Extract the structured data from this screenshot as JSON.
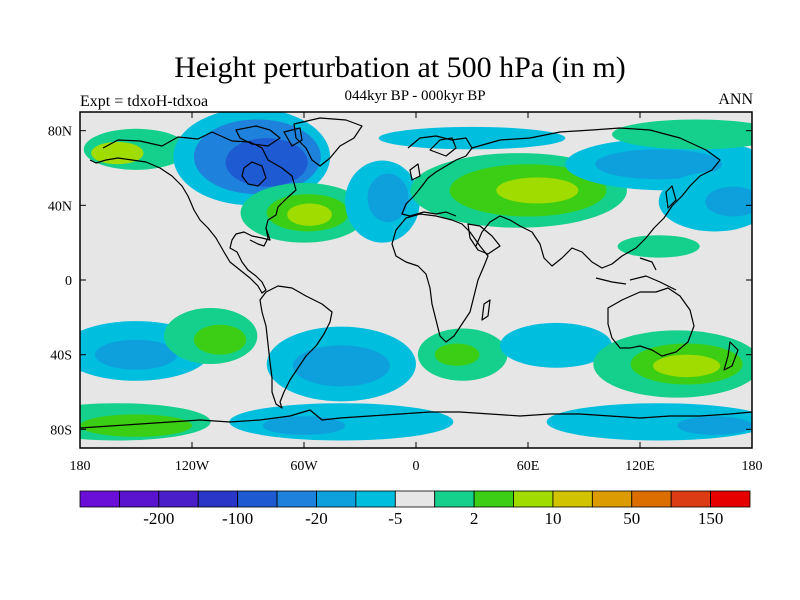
{
  "title": "Height perturbation at 500 hPa (in m)",
  "subtitle": "044kyr BP - 000kyr BP",
  "left_label": "Expt = tdxoH-tdxoa",
  "right_label": "ANN",
  "lat_ticks": [
    {
      "label": "80N",
      "lat": 80
    },
    {
      "label": "40N",
      "lat": 40
    },
    {
      "label": "0",
      "lat": 0
    },
    {
      "label": "40S",
      "lat": -40
    },
    {
      "label": "80S",
      "lat": -80
    }
  ],
  "lon_ticks": [
    {
      "label": "180",
      "lon": -180
    },
    {
      "label": "120W",
      "lon": -120
    },
    {
      "label": "60W",
      "lon": -60
    },
    {
      "label": "0",
      "lon": 0
    },
    {
      "label": "60E",
      "lon": 60
    },
    {
      "label": "120E",
      "lon": 120
    },
    {
      "label": "180",
      "lon": 180
    }
  ],
  "colorbar": {
    "colors": [
      "#6a0fd8",
      "#5a14d0",
      "#4a1ec8",
      "#2a36c8",
      "#1e5ad2",
      "#1e82dc",
      "#0ea0dc",
      "#00bede",
      "#e6e6e6",
      "#14d08c",
      "#3cce14",
      "#a0dc00",
      "#d2c300",
      "#dc9c00",
      "#dc6e00",
      "#dc3c14",
      "#e60000"
    ],
    "labels": [
      "-200",
      "-100",
      "-20",
      "-5",
      "2",
      "10",
      "50",
      "150"
    ]
  },
  "map": {
    "background_color": "#e6e6e6",
    "anomaly_regions": [
      {
        "lon": -150,
        "lat": 70,
        "rx": 28,
        "ry": 11,
        "level": 1
      },
      {
        "lon": -160,
        "lat": 68,
        "rx": 14,
        "ry": 6,
        "level": 3
      },
      {
        "lon": -88,
        "lat": 66,
        "rx": 42,
        "ry": 26,
        "level": -1
      },
      {
        "lon": -85,
        "lat": 66,
        "rx": 34,
        "ry": 20,
        "level": -3
      },
      {
        "lon": -80,
        "lat": 63,
        "rx": 22,
        "ry": 13,
        "level": -4
      },
      {
        "lon": -60,
        "lat": 36,
        "rx": 34,
        "ry": 16,
        "level": 1
      },
      {
        "lon": -58,
        "lat": 36,
        "rx": 22,
        "ry": 10,
        "level": 2
      },
      {
        "lon": -57,
        "lat": 35,
        "rx": 12,
        "ry": 6,
        "level": 3
      },
      {
        "lon": -18,
        "lat": 42,
        "rx": 20,
        "ry": 22,
        "level": -1
      },
      {
        "lon": -15,
        "lat": 44,
        "rx": 11,
        "ry": 13,
        "level": -2
      },
      {
        "lon": 55,
        "lat": 48,
        "rx": 58,
        "ry": 20,
        "level": 1
      },
      {
        "lon": 60,
        "lat": 48,
        "rx": 42,
        "ry": 14,
        "level": 2
      },
      {
        "lon": 65,
        "lat": 48,
        "rx": 22,
        "ry": 7,
        "level": 3
      },
      {
        "lon": 135,
        "lat": 62,
        "rx": 55,
        "ry": 14,
        "level": -1
      },
      {
        "lon": 130,
        "lat": 62,
        "rx": 34,
        "ry": 8,
        "level": -2
      },
      {
        "lon": 160,
        "lat": 42,
        "rx": 30,
        "ry": 16,
        "level": -1
      },
      {
        "lon": 170,
        "lat": 42,
        "rx": 15,
        "ry": 8,
        "level": -2
      },
      {
        "lon": 130,
        "lat": 18,
        "rx": 22,
        "ry": 6,
        "level": 1
      },
      {
        "lon": 150,
        "lat": 78,
        "rx": 45,
        "ry": 8,
        "level": 1
      },
      {
        "lon": 30,
        "lat": 76,
        "rx": 50,
        "ry": 6,
        "level": -1
      },
      {
        "lon": -150,
        "lat": -38,
        "rx": 40,
        "ry": 16,
        "level": -1
      },
      {
        "lon": -150,
        "lat": -40,
        "rx": 22,
        "ry": 8,
        "level": -2
      },
      {
        "lon": -110,
        "lat": -30,
        "rx": 25,
        "ry": 15,
        "level": 1
      },
      {
        "lon": -105,
        "lat": -32,
        "rx": 14,
        "ry": 8,
        "level": 2
      },
      {
        "lon": -40,
        "lat": -45,
        "rx": 40,
        "ry": 20,
        "level": -1
      },
      {
        "lon": -40,
        "lat": -46,
        "rx": 26,
        "ry": 11,
        "level": -2
      },
      {
        "lon": 25,
        "lat": -40,
        "rx": 24,
        "ry": 14,
        "level": 1
      },
      {
        "lon": 22,
        "lat": -40,
        "rx": 12,
        "ry": 6,
        "level": 2
      },
      {
        "lon": 75,
        "lat": -35,
        "rx": 30,
        "ry": 12,
        "level": -1
      },
      {
        "lon": 140,
        "lat": -45,
        "rx": 45,
        "ry": 18,
        "level": 1
      },
      {
        "lon": 145,
        "lat": -45,
        "rx": 30,
        "ry": 11,
        "level": 2
      },
      {
        "lon": 145,
        "lat": -46,
        "rx": 18,
        "ry": 6,
        "level": 3
      },
      {
        "lon": -160,
        "lat": -76,
        "rx": 50,
        "ry": 10,
        "level": 1
      },
      {
        "lon": -150,
        "lat": -78,
        "rx": 30,
        "ry": 6,
        "level": 2
      },
      {
        "lon": -40,
        "lat": -76,
        "rx": 60,
        "ry": 10,
        "level": -1
      },
      {
        "lon": -60,
        "lat": -78,
        "rx": 22,
        "ry": 5,
        "level": -2
      },
      {
        "lon": 130,
        "lat": -76,
        "rx": 60,
        "ry": 10,
        "level": -1
      },
      {
        "lon": 160,
        "lat": -78,
        "rx": 20,
        "ry": 5,
        "level": -2
      }
    ]
  }
}
